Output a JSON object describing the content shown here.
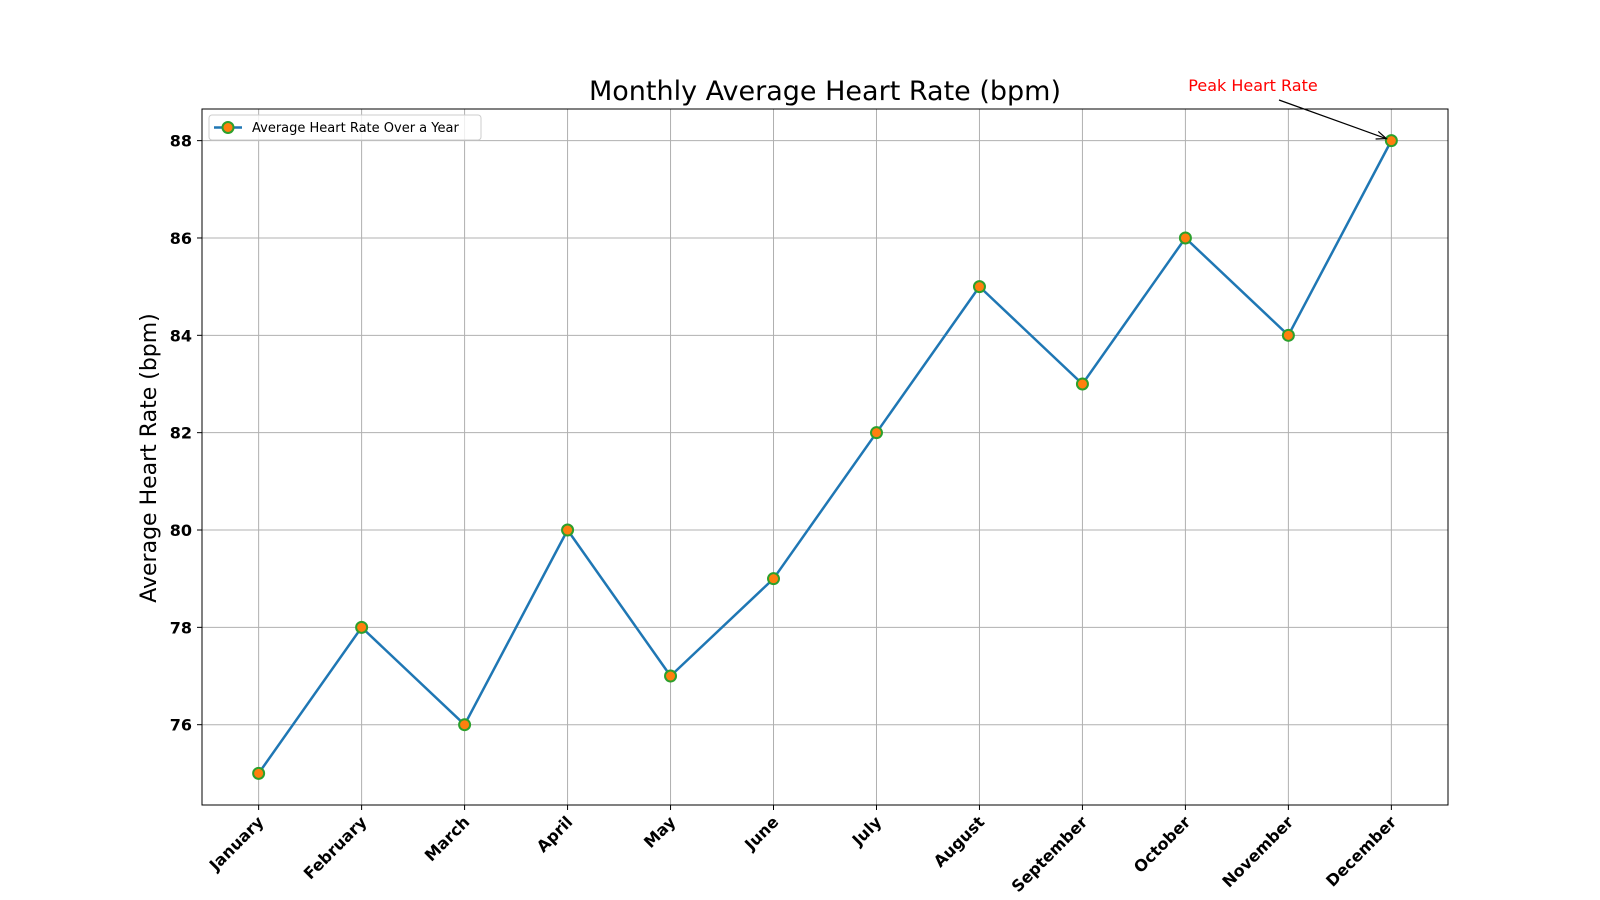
{
  "chart_data": {
    "type": "line",
    "title": "Monthly Average Heart Rate (bpm)",
    "xlabel": "",
    "ylabel": "Average Heart Rate (bpm)",
    "categories": [
      "January",
      "February",
      "March",
      "April",
      "May",
      "June",
      "July",
      "August",
      "September",
      "October",
      "November",
      "December"
    ],
    "series": [
      {
        "name": "Average Heart Rate Over a Year",
        "values": [
          75,
          78,
          76,
          80,
          77,
          79,
          82,
          85,
          83,
          86,
          84,
          88
        ],
        "line_color": "#1f77b4",
        "marker_face": "#ff7f0e",
        "marker_edge": "#2ca02c"
      }
    ],
    "yticks": [
      76,
      78,
      80,
      82,
      84,
      86,
      88
    ],
    "ylim": [
      74.35,
      88.65
    ],
    "grid": true,
    "legend_position": "upper-left",
    "annotation": {
      "text": "Peak Heart Rate",
      "category": "December",
      "value": 88,
      "color": "#ff0000"
    }
  }
}
